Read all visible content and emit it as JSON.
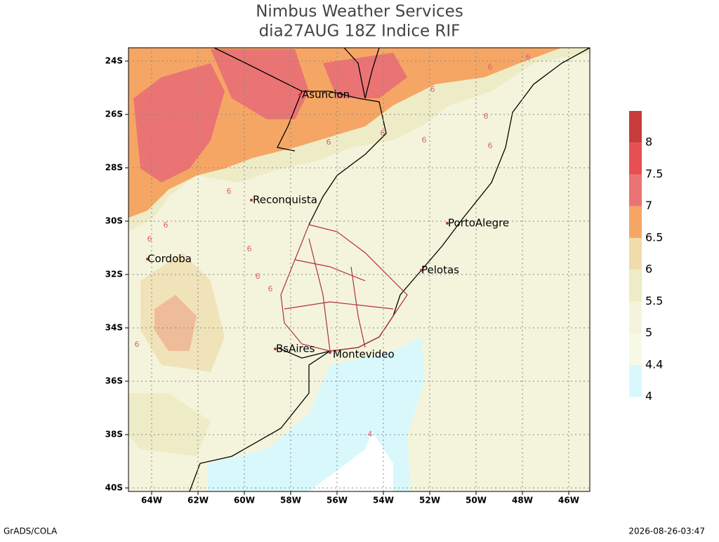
{
  "header": {
    "title": "Nimbus Weather Services",
    "subtitle": "dia27AUG 18Z Indice RIF"
  },
  "map": {
    "lat_ticks": [
      {
        "value": -24,
        "label": "24S"
      },
      {
        "value": -26,
        "label": "26S"
      },
      {
        "value": -28,
        "label": "28S"
      },
      {
        "value": -30,
        "label": "30S"
      },
      {
        "value": -32,
        "label": "32S"
      },
      {
        "value": -34,
        "label": "34S"
      },
      {
        "value": -36,
        "label": "36S"
      },
      {
        "value": -38,
        "label": "38S"
      },
      {
        "value": -40,
        "label": "40S"
      }
    ],
    "lon_ticks": [
      {
        "value": -64,
        "label": "64W"
      },
      {
        "value": -62,
        "label": "62W"
      },
      {
        "value": -60,
        "label": "60W"
      },
      {
        "value": -58,
        "label": "58W"
      },
      {
        "value": -56,
        "label": "56W"
      },
      {
        "value": -54,
        "label": "54W"
      },
      {
        "value": -52,
        "label": "52W"
      },
      {
        "value": -50,
        "label": "50W"
      },
      {
        "value": -48,
        "label": "48W"
      },
      {
        "value": -46,
        "label": "46W"
      }
    ],
    "cities": [
      "Asuncion",
      "Reconquista",
      "PortoAlegre",
      "Cordoba",
      "Pelotas",
      "BsAires",
      "Montevideo"
    ],
    "contour_labels": [
      6,
      6,
      6,
      6,
      6,
      6,
      6,
      6,
      6,
      6,
      6,
      6,
      6,
      6,
      6,
      4
    ],
    "colorbar": {
      "levels": [
        4,
        4.4,
        5,
        5.5,
        6,
        6.5,
        7,
        7.5,
        8
      ],
      "colors": [
        "#d8f8fc",
        "#f8f8e6",
        "#f4f4dc",
        "#eeecc6",
        "#f0dcaa",
        "#f5a665",
        "#ea7474",
        "#e65050",
        "#c83c3c"
      ]
    }
  },
  "footer": {
    "left": "GrADS/COLA",
    "right": "2026-08-26-03:47"
  }
}
